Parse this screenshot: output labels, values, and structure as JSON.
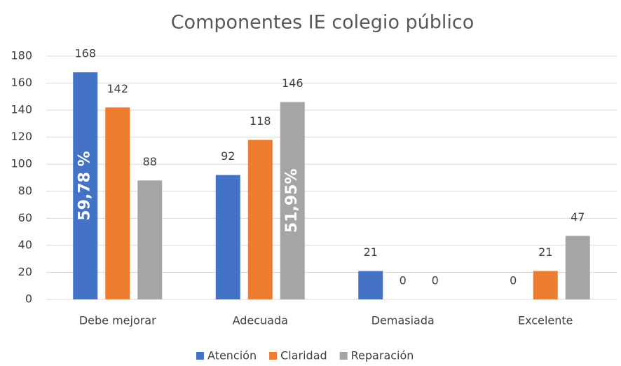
{
  "chart_data": {
    "type": "bar",
    "title": "Componentes IE colegio público",
    "categories": [
      "Debe mejorar",
      "Adecuada",
      "Demasiada",
      "Excelente"
    ],
    "series": [
      {
        "name": "Atención",
        "color": "#4472c4",
        "values": [
          168,
          92,
          21,
          0
        ]
      },
      {
        "name": "Claridad",
        "color": "#ed7d31",
        "values": [
          142,
          118,
          0,
          21
        ]
      },
      {
        "name": "Reparación",
        "color": "#a5a5a5",
        "values": [
          88,
          146,
          0,
          47
        ]
      }
    ],
    "annotations": [
      "59,78 %",
      "51,95%"
    ],
    "ylim": [
      0,
      180
    ],
    "yticks": [
      0,
      20,
      40,
      60,
      80,
      100,
      120,
      140,
      160,
      180
    ],
    "grid": true,
    "legend": "bottom"
  }
}
